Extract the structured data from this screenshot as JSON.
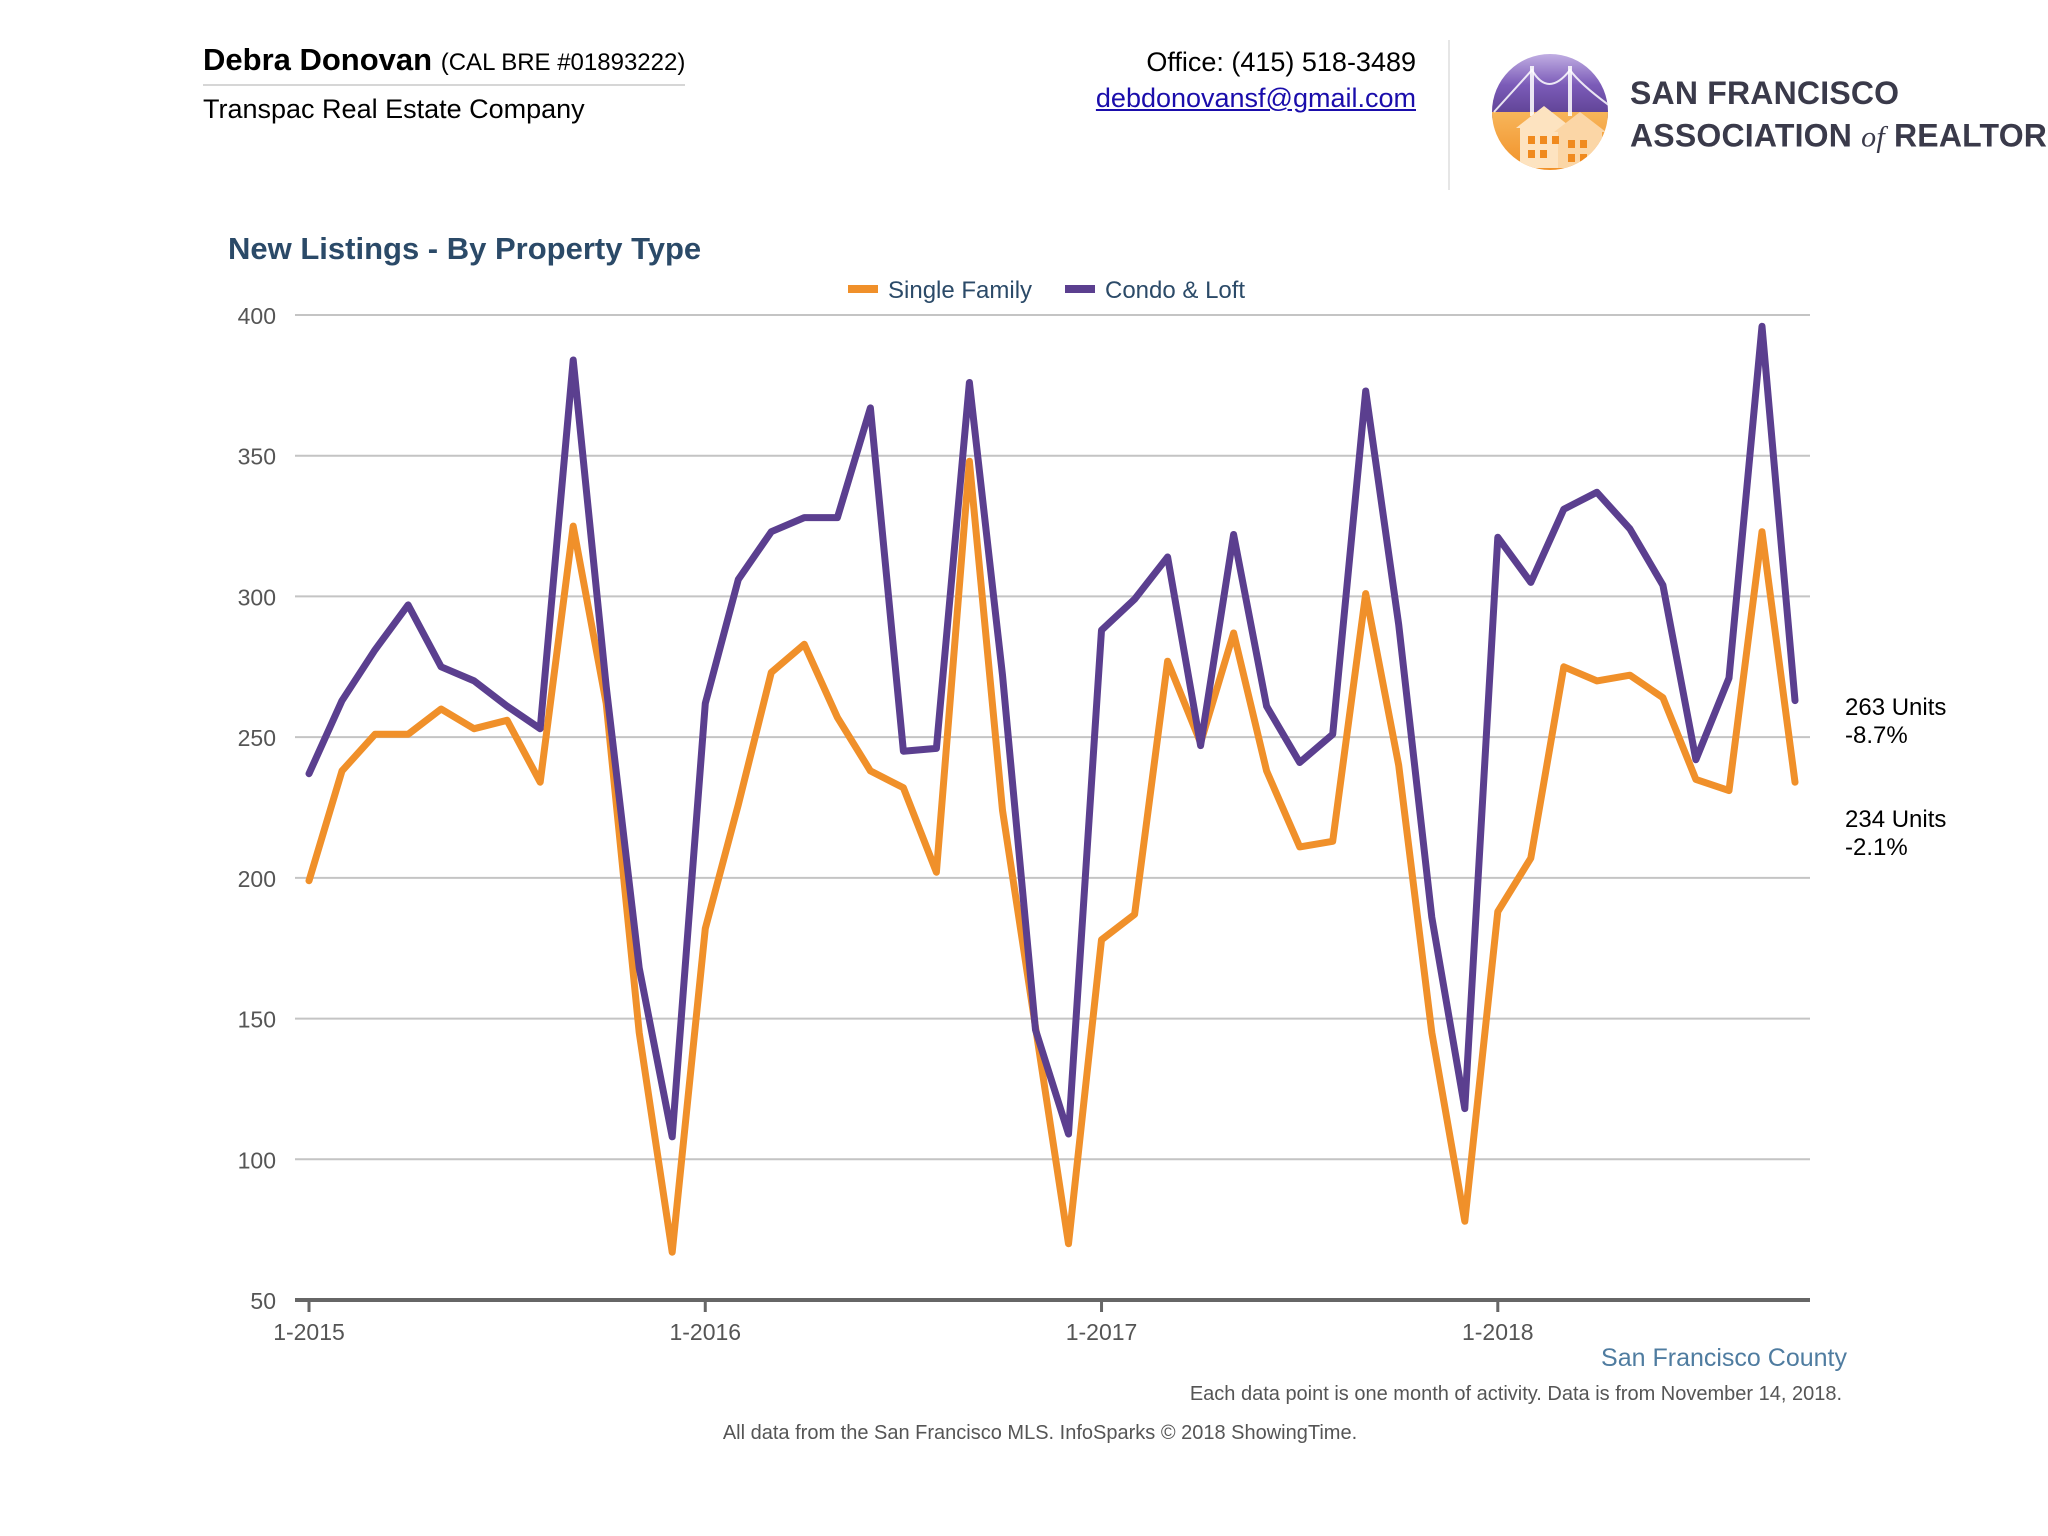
{
  "header": {
    "agent_name": "Debra Donovan",
    "agent_license": "(CAL BRE #01893222)",
    "company": "Transpac Real Estate Company",
    "office_phone": "Office: (415) 518-3489",
    "email": "debdonovansf@gmail.com",
    "logo": {
      "icon": "golden-gate-bridge-houses-logo",
      "line1": "SAN FRANCISCO",
      "line2_pre": "ASSOCIATION",
      "line2_of": "of",
      "line2_post": "REALTORS",
      "trademark": "®"
    }
  },
  "chart_data": {
    "type": "line",
    "title": "New Listings - By Property Type",
    "ylim": [
      50,
      400
    ],
    "y_ticks": [
      "50",
      "100",
      "150",
      "200",
      "250",
      "300",
      "350",
      "400"
    ],
    "x_tick_labels": [
      "1-2015",
      "1-2016",
      "1-2017",
      "1-2018"
    ],
    "x_tick_months": [
      0,
      12,
      24,
      36
    ],
    "x": [
      "1-2015",
      "2-2015",
      "3-2015",
      "4-2015",
      "5-2015",
      "6-2015",
      "7-2015",
      "8-2015",
      "9-2015",
      "10-2015",
      "11-2015",
      "12-2015",
      "1-2016",
      "2-2016",
      "3-2016",
      "4-2016",
      "5-2016",
      "6-2016",
      "7-2016",
      "8-2016",
      "9-2016",
      "10-2016",
      "11-2016",
      "12-2016",
      "1-2017",
      "2-2017",
      "3-2017",
      "4-2017",
      "5-2017",
      "6-2017",
      "7-2017",
      "8-2017",
      "9-2017",
      "10-2017",
      "11-2017",
      "12-2017",
      "1-2018",
      "2-2018",
      "3-2018",
      "4-2018",
      "5-2018",
      "6-2018",
      "7-2018",
      "8-2018",
      "9-2018",
      "10-2018"
    ],
    "legend_position": "top-center",
    "grid": true,
    "series": [
      {
        "name": "Single Family",
        "color": "#f0902a",
        "values": [
          199,
          238,
          251,
          251,
          260,
          253,
          256,
          234,
          325,
          262,
          145,
          67,
          182,
          226,
          273,
          283,
          257,
          238,
          232,
          202,
          348,
          224,
          147,
          70,
          178,
          187,
          277,
          248,
          287,
          238,
          211,
          213,
          301,
          240,
          145,
          78,
          188,
          207,
          275,
          270,
          272,
          264,
          235,
          231,
          323,
          234
        ]
      },
      {
        "name": "Condo & Loft",
        "color": "#5b3f8f",
        "values": [
          237,
          263,
          281,
          297,
          275,
          270,
          261,
          253,
          384,
          268,
          168,
          108,
          262,
          306,
          323,
          328,
          328,
          367,
          245,
          246,
          376,
          272,
          146,
          109,
          288,
          299,
          314,
          247,
          322,
          261,
          241,
          251,
          373,
          290,
          186,
          118,
          321,
          305,
          331,
          337,
          324,
          304,
          242,
          271,
          396,
          263
        ]
      }
    ],
    "end_labels": [
      {
        "series": "Condo & Loft",
        "units": "263 Units",
        "change": "-8.7%"
      },
      {
        "series": "Single Family",
        "units": "234 Units",
        "change": "-2.1%"
      }
    ]
  },
  "footer": {
    "county": "San Francisco County",
    "note": "Each data point is one month of activity. Data is from November 14, 2018.",
    "source": "All data from the San Francisco MLS. InfoSparks © 2018 ShowingTime."
  }
}
